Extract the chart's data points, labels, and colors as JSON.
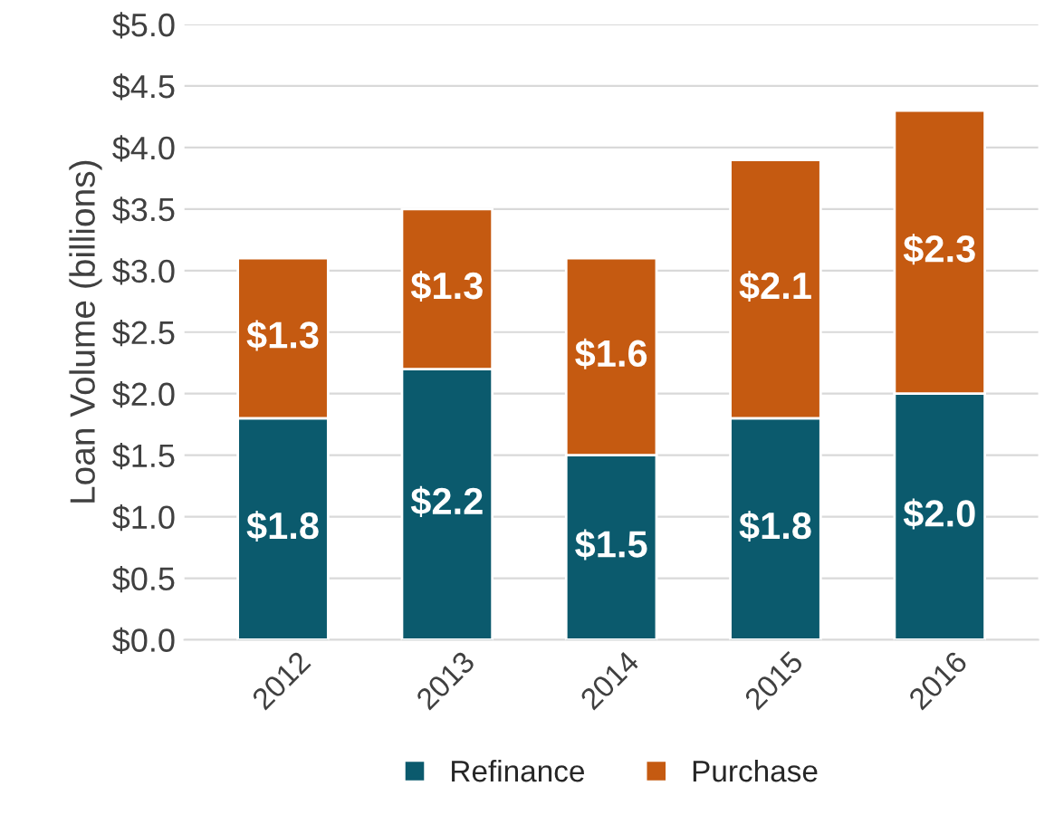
{
  "chart_data": {
    "type": "bar",
    "stacked": true,
    "ylabel": "Loan Volume (billions)",
    "categories": [
      "2012",
      "2013",
      "2014",
      "2015",
      "2016"
    ],
    "series": [
      {
        "name": "Refinance",
        "color": "#0b5a6d",
        "values": [
          1.8,
          2.2,
          1.5,
          1.8,
          2.0
        ],
        "value_labels": [
          "$1.8",
          "$2.2",
          "$1.5",
          "$1.8",
          "$2.0"
        ]
      },
      {
        "name": "Purchase",
        "color": "#c55a11",
        "values": [
          1.3,
          1.3,
          1.6,
          2.1,
          2.3
        ],
        "value_labels": [
          "$1.3",
          "$1.3",
          "$1.6",
          "$2.1",
          "$2.3"
        ]
      }
    ],
    "ylim": [
      0,
      5
    ],
    "yticks": [
      {
        "value": 0,
        "label": "$0.0"
      },
      {
        "value": 0.5,
        "label": "$0.5"
      },
      {
        "value": 1,
        "label": "$1.0"
      },
      {
        "value": 1.5,
        "label": "$1.5"
      },
      {
        "value": 2,
        "label": "$2.0"
      },
      {
        "value": 2.5,
        "label": "$2.5"
      },
      {
        "value": 3,
        "label": "$3.0"
      },
      {
        "value": 3.5,
        "label": "$3.5"
      },
      {
        "value": 4,
        "label": "$4.0"
      },
      {
        "value": 4.5,
        "label": "$4.5"
      },
      {
        "value": 5,
        "label": "$5.0"
      }
    ],
    "grid": "y",
    "legend": "bottom"
  }
}
